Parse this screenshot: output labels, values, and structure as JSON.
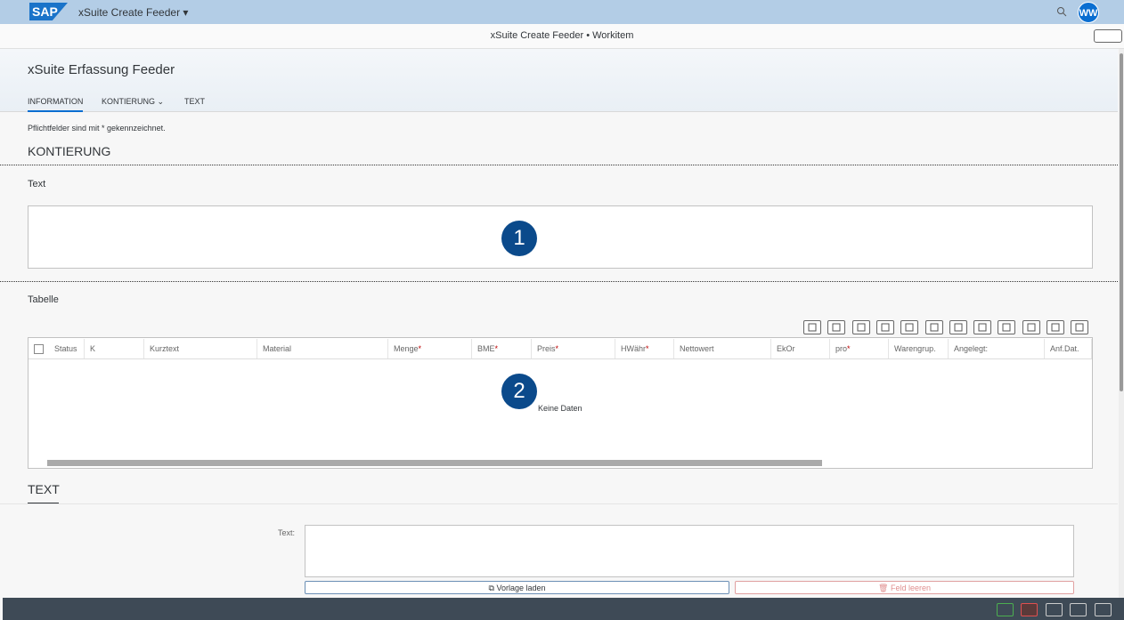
{
  "shell": {
    "logo": "SAP",
    "app_title": "xSuite Create Feeder",
    "avatar": "WW"
  },
  "subheader": {
    "title": "xSuite Create Feeder • Workitem"
  },
  "object_header": {
    "title": "xSuite Erfassung Feeder",
    "tabs": [
      "INFORMATION",
      "KONTIERUNG",
      "TEXT"
    ]
  },
  "form": {
    "hint": "Pflichtfelder sind mit * gekennzeichnet.",
    "kontierung": {
      "title": "KONTIERUNG",
      "text_label": "Text",
      "badge_1": "1",
      "table_label": "Tabelle",
      "badge_2": "2",
      "table": {
        "columns": [
          {
            "label": "Status"
          },
          {
            "label": "K"
          },
          {
            "label": "Kurztext"
          },
          {
            "label": "Material"
          },
          {
            "label": "Menge",
            "required": "*"
          },
          {
            "label": "BME",
            "required": "*"
          },
          {
            "label": "Preis",
            "required": "*"
          },
          {
            "label": "HWähr",
            "required": "*"
          },
          {
            "label": "Nettowert"
          },
          {
            "label": "EkOr"
          },
          {
            "label": "pro",
            "required": "*"
          },
          {
            "label": "Warengrup."
          },
          {
            "label": "Angelegt:"
          },
          {
            "label": "Anf.Dat."
          }
        ],
        "empty_text": "Keine Daten"
      }
    },
    "text_section": {
      "title": "TEXT",
      "field_label": "Text:",
      "buttons": [
        "Vorlage laden",
        "Feld leeren"
      ]
    }
  }
}
